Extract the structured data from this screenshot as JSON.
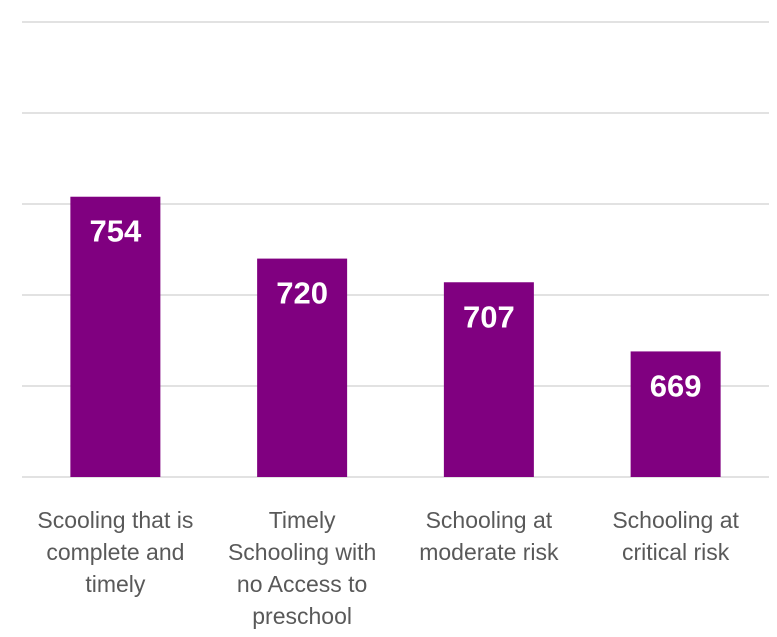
{
  "chart_data": {
    "type": "bar",
    "categories": [
      [
        "Scooling that is",
        "complete and",
        "timely"
      ],
      [
        "Timely",
        "Schooling with",
        "no Access to",
        "preschool"
      ],
      [
        "Schooling at",
        "moderate risk"
      ],
      [
        "Schooling at",
        "critical risk"
      ]
    ],
    "values": [
      754,
      720,
      707,
      669
    ],
    "data_labels": [
      "754",
      "720",
      "707",
      "669"
    ],
    "title": "",
    "xlabel": "",
    "ylabel": "",
    "ylim": [
      600,
      850
    ],
    "grid": true,
    "gridline_values": [
      600,
      650,
      700,
      750,
      800,
      850
    ],
    "show_y_tick_labels": false,
    "legend": "none",
    "bar_color": "#800080",
    "label_color": "#ffffff",
    "category_label_color": "#595959",
    "grid_color": "#d9d9d9"
  }
}
